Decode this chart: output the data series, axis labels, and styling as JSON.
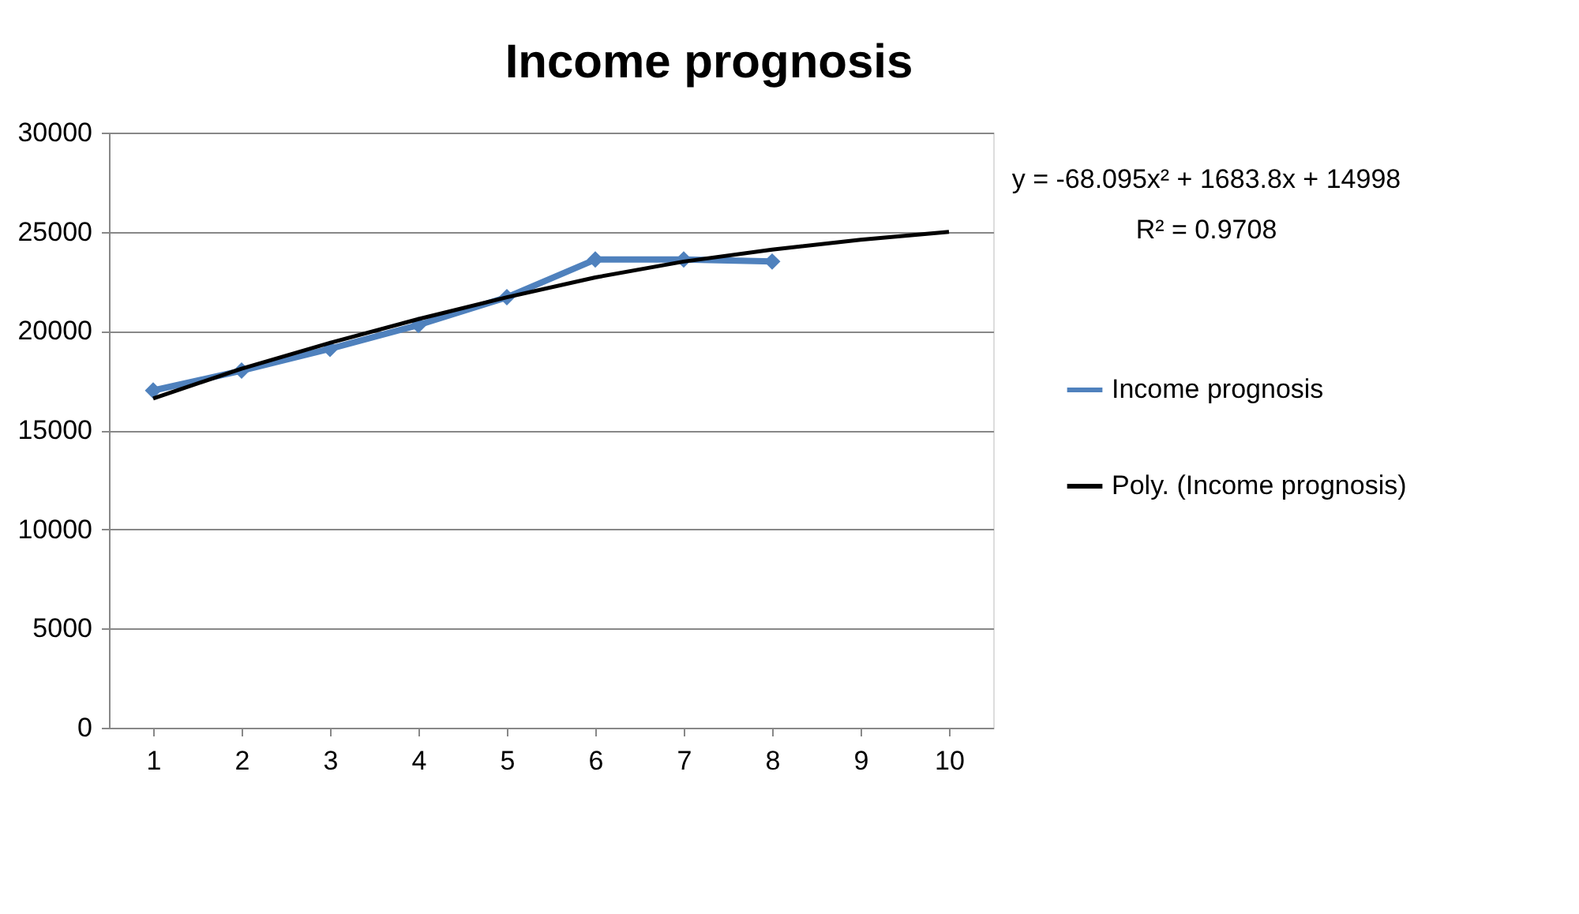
{
  "chart_data": {
    "type": "line",
    "title": "Income prognosis",
    "categories": [
      "1",
      "2",
      "3",
      "4",
      "5",
      "6",
      "7",
      "8",
      "9",
      "10"
    ],
    "series": [
      {
        "name": "Income prognosis",
        "color": "#4f81bd",
        "marker": "diamond",
        "values": [
          17000,
          18000,
          19100,
          20300,
          21700,
          23600,
          23600,
          23500,
          null,
          null
        ]
      },
      {
        "name": "Poly. (Income prognosis)",
        "color": "#000000",
        "type": "line",
        "marker": "none",
        "values": [
          16600,
          18100,
          19400,
          20600,
          21700,
          22700,
          23500,
          24100,
          24600,
          25000
        ]
      }
    ],
    "ylim": [
      0,
      30000
    ],
    "yticks": [
      0,
      5000,
      10000,
      15000,
      20000,
      25000,
      30000
    ],
    "grid": "y",
    "legend": "right",
    "annotations": [
      "y = -68.095x² + 1683.8x + 14998",
      "R² = 0.9708"
    ]
  }
}
